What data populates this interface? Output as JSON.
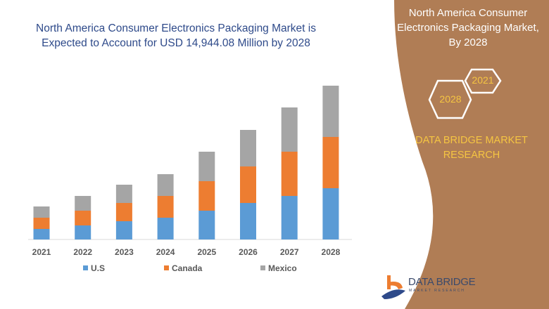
{
  "header": {
    "title": "North America Consumer Electronics Packaging Market is Expected to Account for USD 14,944.08 Million by 2028"
  },
  "side_panel": {
    "title": "North America Consumer Electronics Packaging Market, By 2028",
    "hex_labels": [
      "2021",
      "2028"
    ],
    "brand": "DATA BRIDGE MARKET RESEARCH",
    "logo_text": "DATA BRIDGE",
    "logo_sub": "MARKET RESEARCH",
    "panel_color": "#B07D55",
    "accent_color": "#F5C542"
  },
  "chart_data": {
    "type": "bar",
    "stacked": true,
    "title": "",
    "xlabel": "",
    "ylabel": "",
    "grid": false,
    "legend_position": "bottom",
    "categories": [
      "2021",
      "2022",
      "2023",
      "2024",
      "2025",
      "2026",
      "2027",
      "2028"
    ],
    "series": [
      {
        "name": "U.S",
        "color": "#5B9BD5",
        "values": [
          15,
          20,
          26,
          31,
          41,
          52,
          62,
          73
        ]
      },
      {
        "name": "Canada",
        "color": "#ED7D31",
        "values": [
          16,
          21,
          26,
          31,
          42,
          52,
          63,
          73
        ]
      },
      {
        "name": "Mexico",
        "color": "#A5A5A5",
        "values": [
          16,
          21,
          26,
          31,
          42,
          52,
          63,
          73
        ]
      }
    ]
  }
}
